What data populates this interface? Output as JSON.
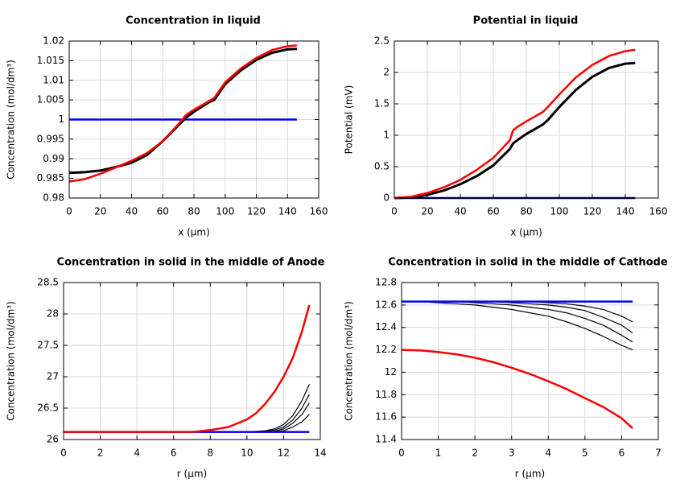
{
  "chart_data": [
    {
      "type": "line",
      "title": "Concentration in liquid",
      "x_label": "x (µm)",
      "y_label": "Concentration (mol/dm³)",
      "x": [
        0,
        10,
        20,
        30,
        40,
        50,
        60,
        70,
        75,
        80,
        90,
        93,
        100,
        110,
        120,
        130,
        140,
        146
      ],
      "series": [
        {
          "color": "#0000ff",
          "values": [
            1,
            1,
            1,
            1,
            1,
            1,
            1,
            1,
            1,
            1,
            1,
            1,
            1,
            1,
            1,
            1,
            1,
            1
          ]
        },
        {
          "color": "#000000",
          "values": [
            0.9864,
            0.9866,
            0.987,
            0.9879,
            0.989,
            0.991,
            0.9945,
            0.9985,
            1.0005,
            1.002,
            1.0045,
            1.005,
            1.009,
            1.0125,
            1.0152,
            1.017,
            1.0179,
            1.018
          ]
        },
        {
          "color": "#ff0000",
          "values": [
            0.9842,
            0.9848,
            0.9862,
            0.9878,
            0.9895,
            0.9915,
            0.9945,
            0.9988,
            1.0012,
            1.0025,
            1.0048,
            1.0055,
            1.0095,
            1.013,
            1.0157,
            1.0177,
            1.0187,
            1.0189
          ]
        }
      ],
      "xlim": [
        0,
        160
      ],
      "xticks": [
        0,
        20,
        40,
        60,
        80,
        100,
        120,
        140,
        160
      ],
      "ylim": [
        0.98,
        1.02
      ],
      "yticks": [
        0.98,
        0.985,
        0.99,
        0.995,
        1,
        1.005,
        1.01,
        1.015,
        1.02
      ],
      "grid": true
    },
    {
      "type": "line",
      "title": "Potential in liquid",
      "x_label": "x (µm)",
      "y_label": "Potential (mV)",
      "x": [
        0,
        10,
        20,
        30,
        40,
        50,
        60,
        70,
        72,
        75,
        80,
        90,
        93,
        100,
        110,
        120,
        130,
        140,
        146
      ],
      "series": [
        {
          "color": "#000080",
          "values": [
            0,
            0,
            0,
            0,
            0,
            0,
            0,
            0,
            0,
            0,
            0,
            0,
            0,
            0,
            0,
            0,
            0,
            0,
            0
          ]
        },
        {
          "color": "#000000",
          "values": [
            0,
            0.01,
            0.05,
            0.12,
            0.22,
            0.35,
            0.52,
            0.78,
            0.87,
            0.93,
            1.02,
            1.17,
            1.24,
            1.45,
            1.72,
            1.93,
            2.07,
            2.14,
            2.15
          ]
        },
        {
          "color": "#ff0000",
          "values": [
            0,
            0.02,
            0.08,
            0.17,
            0.29,
            0.45,
            0.64,
            0.92,
            1.08,
            1.14,
            1.22,
            1.37,
            1.45,
            1.65,
            1.92,
            2.12,
            2.26,
            2.34,
            2.36
          ]
        }
      ],
      "xlim": [
        0,
        160
      ],
      "xticks": [
        0,
        20,
        40,
        60,
        80,
        100,
        120,
        140,
        160
      ],
      "ylim": [
        0,
        2.5
      ],
      "yticks": [
        0,
        0.5,
        1,
        1.5,
        2,
        2.5
      ],
      "grid": true
    },
    {
      "type": "line",
      "title": "Concentration in solid in the middle of Anode",
      "x_label": "r (µm)",
      "y_label": "Concentration (mol/dm³)",
      "x": [
        0,
        2,
        4,
        6,
        7,
        8,
        9,
        10,
        10.5,
        11,
        11.5,
        12,
        12.5,
        13,
        13.4
      ],
      "series": [
        {
          "color": "#000000",
          "values": [
            26.12,
            26.12,
            26.12,
            26.12,
            26.12,
            26.12,
            26.12,
            26.12,
            26.13,
            26.14,
            26.17,
            26.24,
            26.38,
            26.62,
            26.88
          ]
        },
        {
          "color": "#000000",
          "values": [
            26.12,
            26.12,
            26.12,
            26.12,
            26.12,
            26.12,
            26.12,
            26.12,
            26.12,
            26.13,
            26.15,
            26.2,
            26.31,
            26.5,
            26.72
          ]
        },
        {
          "color": "#000000",
          "values": [
            26.12,
            26.12,
            26.12,
            26.12,
            26.12,
            26.12,
            26.12,
            26.12,
            26.12,
            26.12,
            26.13,
            26.17,
            26.26,
            26.4,
            26.58
          ]
        },
        {
          "color": "#000000",
          "values": [
            26.12,
            26.12,
            26.12,
            26.12,
            26.12,
            26.12,
            26.12,
            26.12,
            26.12,
            26.12,
            26.12,
            26.14,
            26.2,
            26.28,
            26.4
          ]
        },
        {
          "color": "#0000ff",
          "values": [
            26.12,
            26.12,
            26.12,
            26.12,
            26.12,
            26.12,
            26.12,
            26.12,
            26.12,
            26.12,
            26.12,
            26.12,
            26.12,
            26.12,
            26.12
          ]
        },
        {
          "color": "#ff0000",
          "values": [
            26.12,
            26.12,
            26.12,
            26.12,
            26.12,
            26.15,
            26.2,
            26.32,
            26.42,
            26.57,
            26.76,
            27.0,
            27.3,
            27.72,
            28.14
          ]
        }
      ],
      "xlim": [
        0,
        14
      ],
      "xticks": [
        0,
        2,
        4,
        6,
        8,
        10,
        12,
        14
      ],
      "ylim": [
        26,
        28.5
      ],
      "yticks": [
        26,
        26.5,
        27,
        27.5,
        28,
        28.5
      ],
      "grid": true
    },
    {
      "type": "line",
      "title": "Concentration in solid in the middle of Cathode",
      "x_label": "r (µm)",
      "y_label": "Concentration (mol/dm³)",
      "x": [
        0,
        0.5,
        1,
        1.5,
        2,
        2.5,
        3,
        3.5,
        4,
        4.5,
        5,
        5.5,
        6,
        6.3
      ],
      "series": [
        {
          "color": "#000000",
          "values": [
            12.63,
            12.63,
            12.63,
            12.63,
            12.63,
            12.63,
            12.63,
            12.63,
            12.62,
            12.61,
            12.59,
            12.56,
            12.5,
            12.45
          ]
        },
        {
          "color": "#000000",
          "values": [
            12.63,
            12.63,
            12.63,
            12.63,
            12.63,
            12.63,
            12.62,
            12.61,
            12.6,
            12.58,
            12.55,
            12.49,
            12.42,
            12.35
          ]
        },
        {
          "color": "#000000",
          "values": [
            12.63,
            12.63,
            12.63,
            12.63,
            12.62,
            12.61,
            12.6,
            12.58,
            12.56,
            12.53,
            12.48,
            12.42,
            12.33,
            12.27
          ]
        },
        {
          "color": "#000000",
          "values": [
            12.63,
            12.63,
            12.62,
            12.61,
            12.6,
            12.58,
            12.56,
            12.53,
            12.5,
            12.45,
            12.39,
            12.32,
            12.24,
            12.2
          ]
        },
        {
          "color": "#0000ff",
          "values": [
            12.63,
            12.63,
            12.63,
            12.63,
            12.63,
            12.63,
            12.63,
            12.63,
            12.63,
            12.63,
            12.63,
            12.63,
            12.63,
            12.63
          ]
        },
        {
          "color": "#ff0000",
          "values": [
            12.2,
            12.195,
            12.18,
            12.16,
            12.13,
            12.09,
            12.04,
            11.985,
            11.92,
            11.85,
            11.77,
            11.69,
            11.59,
            11.5
          ]
        }
      ],
      "xlim": [
        0,
        7
      ],
      "xticks": [
        0,
        1,
        2,
        3,
        4,
        5,
        6,
        7
      ],
      "ylim": [
        11.4,
        12.8
      ],
      "yticks": [
        11.4,
        11.6,
        11.8,
        12,
        12.2,
        12.4,
        12.6,
        12.8
      ],
      "grid": true
    }
  ]
}
